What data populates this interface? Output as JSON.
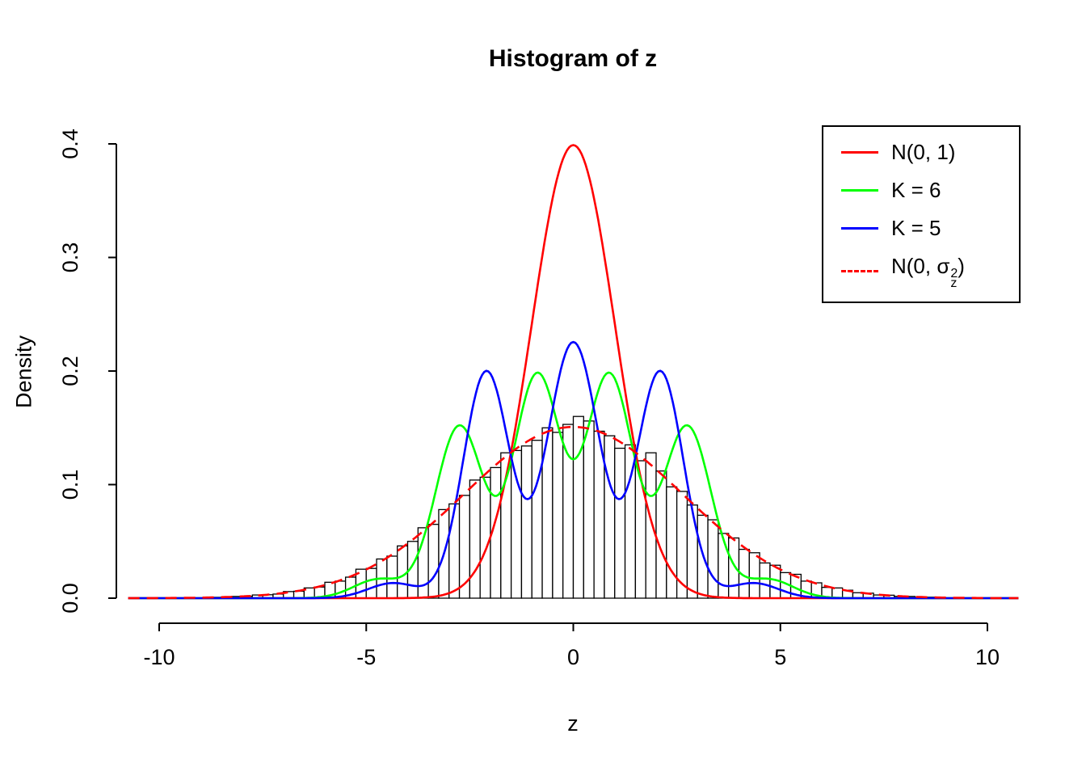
{
  "chart_data": {
    "type": "histogram",
    "title": "Histogram of z",
    "xlabel": "z",
    "ylabel": "Density",
    "xlim": [
      -10.75,
      10.75
    ],
    "ylim": [
      0,
      0.4
    ],
    "xticks": [
      -10,
      -5,
      0,
      5,
      10
    ],
    "xtick_labels": [
      "-10",
      "-5",
      "0",
      "5",
      "10"
    ],
    "yticks": [
      0.0,
      0.1,
      0.2,
      0.3,
      0.4
    ],
    "ytick_labels": [
      "0.0",
      "0.1",
      "0.2",
      "0.3",
      "0.4"
    ],
    "grid": false,
    "legend_position": "top-right",
    "histogram": {
      "scale": "density",
      "bin_start": -8.75,
      "bin_width": 0.25,
      "bar_fill": "#ffffff",
      "bar_stroke": "#000000",
      "heights": [
        0.0008,
        0.0009,
        0.0015,
        0.0016,
        0.0028,
        0.003,
        0.0036,
        0.0058,
        0.0061,
        0.009,
        0.0098,
        0.014,
        0.015,
        0.0185,
        0.0255,
        0.0262,
        0.0345,
        0.037,
        0.046,
        0.05,
        0.062,
        0.065,
        0.078,
        0.083,
        0.0905,
        0.104,
        0.1065,
        0.115,
        0.128,
        0.13,
        0.134,
        0.139,
        0.15,
        0.146,
        0.153,
        0.16,
        0.156,
        0.147,
        0.143,
        0.132,
        0.135,
        0.121,
        0.128,
        0.112,
        0.098,
        0.094,
        0.082,
        0.073,
        0.069,
        0.057,
        0.053,
        0.043,
        0.04,
        0.031,
        0.029,
        0.0225,
        0.021,
        0.015,
        0.0135,
        0.0095,
        0.009,
        0.007,
        0.0048,
        0.0044,
        0.0028,
        0.0026,
        0.0016,
        0.0015,
        0.0008,
        0.0009
      ]
    },
    "series": [
      {
        "id": "n01",
        "name": "N(0, 1)",
        "color": "#ff0000",
        "dash": null,
        "peak": 0.399,
        "components": [
          {
            "w": 1.0,
            "mu": 0,
            "sd": 1.0
          }
        ]
      },
      {
        "id": "k6",
        "name": "K = 6",
        "color": "#00ff00",
        "dash": null,
        "peaks_at": [
          -2.75,
          -0.87,
          0.87,
          2.75
        ],
        "components": [
          {
            "w": 0.28,
            "mu": -0.87,
            "sd": 0.57
          },
          {
            "w": 0.28,
            "mu": 0.87,
            "sd": 0.57
          },
          {
            "w": 0.22,
            "mu": -2.75,
            "sd": 0.58
          },
          {
            "w": 0.22,
            "mu": 2.75,
            "sd": 0.58
          },
          {
            "w": 0.025,
            "mu": -4.7,
            "sd": 0.6
          },
          {
            "w": 0.025,
            "mu": 4.7,
            "sd": 0.6
          }
        ]
      },
      {
        "id": "k5",
        "name": "K = 5",
        "color": "#0000ff",
        "dash": null,
        "peaks_at": [
          -2.1,
          0,
          2.1
        ],
        "components": [
          {
            "w": 0.35,
            "mu": 0.0,
            "sd": 0.62
          },
          {
            "w": 0.28,
            "mu": -2.1,
            "sd": 0.56
          },
          {
            "w": 0.28,
            "mu": 2.1,
            "sd": 0.56
          },
          {
            "w": 0.02,
            "mu": -4.35,
            "sd": 0.6
          },
          {
            "w": 0.02,
            "mu": 4.35,
            "sd": 0.6
          }
        ]
      },
      {
        "id": "n0-sigmaz2",
        "name": "N(0, σz²)",
        "color": "#ff0000",
        "dash": "14 9",
        "peak": 0.151,
        "components": [
          {
            "w": 1.0,
            "mu": 0,
            "sd": 2.646
          }
        ],
        "label_parts": {
          "prefix": "N(0, ",
          "symbol": "σ",
          "sup": "2",
          "sub": "z",
          "suffix": ")"
        }
      }
    ]
  }
}
